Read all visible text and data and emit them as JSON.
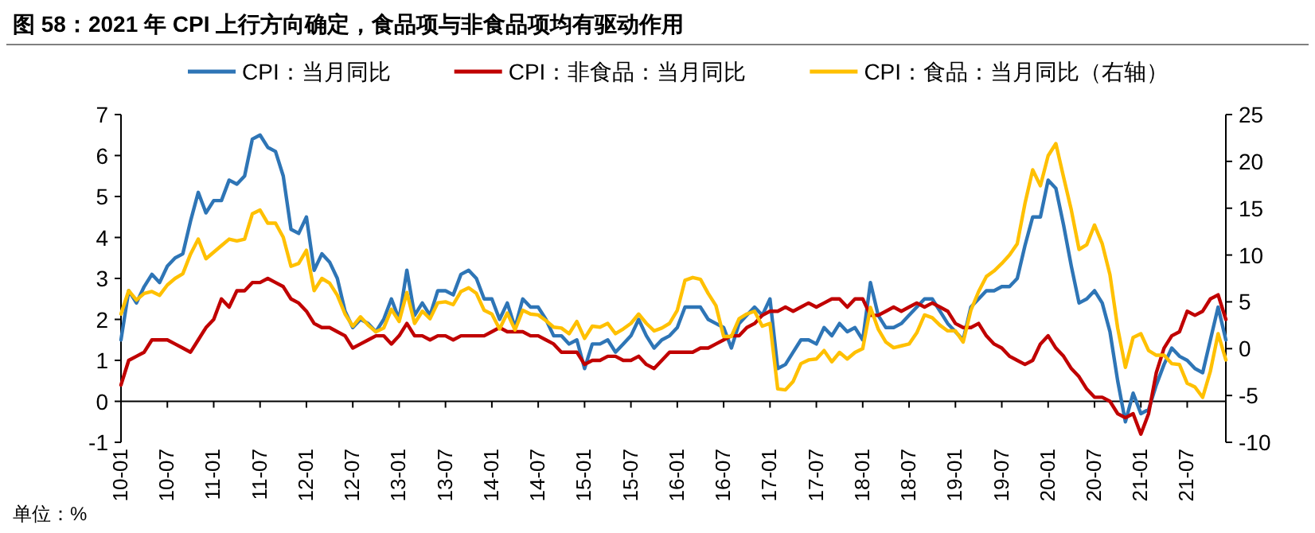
{
  "chart_data": {
    "type": "line",
    "title": "图 58：2021 年 CPI 上行方向确定，食品项与非食品项均有驱动作用",
    "legend": "top",
    "marker": "none",
    "line_style": "solid",
    "grid": false,
    "x": [
      "2010-01",
      "2010-02",
      "2010-03",
      "2010-04",
      "2010-05",
      "2010-06",
      "2010-07",
      "2010-08",
      "2010-09",
      "2010-10",
      "2010-11",
      "2010-12",
      "2011-01",
      "2011-02",
      "2011-03",
      "2011-04",
      "2011-05",
      "2011-06",
      "2011-07",
      "2011-08",
      "2011-09",
      "2011-10",
      "2011-11",
      "2011-12",
      "2012-01",
      "2012-02",
      "2012-03",
      "2012-04",
      "2012-05",
      "2012-06",
      "2012-07",
      "2012-08",
      "2012-09",
      "2012-10",
      "2012-11",
      "2012-12",
      "2013-01",
      "2013-02",
      "2013-03",
      "2013-04",
      "2013-05",
      "2013-06",
      "2013-07",
      "2013-08",
      "2013-09",
      "2013-10",
      "2013-11",
      "2013-12",
      "2014-01",
      "2014-02",
      "2014-03",
      "2014-04",
      "2014-05",
      "2014-06",
      "2014-07",
      "2014-08",
      "2014-09",
      "2014-10",
      "2014-11",
      "2014-12",
      "2015-01",
      "2015-02",
      "2015-03",
      "2015-04",
      "2015-05",
      "2015-06",
      "2015-07",
      "2015-08",
      "2015-09",
      "2015-10",
      "2015-11",
      "2015-12",
      "2016-01",
      "2016-02",
      "2016-03",
      "2016-04",
      "2016-05",
      "2016-06",
      "2016-07",
      "2016-08",
      "2016-09",
      "2016-10",
      "2016-11",
      "2016-12",
      "2017-01",
      "2017-02",
      "2017-03",
      "2017-04",
      "2017-05",
      "2017-06",
      "2017-07",
      "2017-08",
      "2017-09",
      "2017-10",
      "2017-11",
      "2017-12",
      "2018-01",
      "2018-02",
      "2018-03",
      "2018-04",
      "2018-05",
      "2018-06",
      "2018-07",
      "2018-08",
      "2018-09",
      "2018-10",
      "2018-11",
      "2018-12",
      "2019-01",
      "2019-02",
      "2019-03",
      "2019-04",
      "2019-05",
      "2019-06",
      "2019-07",
      "2019-08",
      "2019-09",
      "2019-10",
      "2019-11",
      "2019-12",
      "2020-01",
      "2020-02",
      "2020-03",
      "2020-04",
      "2020-05",
      "2020-06",
      "2020-07",
      "2020-08",
      "2020-09",
      "2020-10",
      "2020-11",
      "2020-12",
      "2021-01",
      "2021-02",
      "2021-03",
      "2021-04",
      "2021-05",
      "2021-06",
      "2021-07",
      "2021-08",
      "2021-09",
      "2021-10",
      "2021-11",
      "2021-12"
    ],
    "xlim": [
      "2010-01",
      "2021-12"
    ],
    "xticks": [
      {
        "value": "2010-01",
        "label": "10-01"
      },
      {
        "value": "2010-07",
        "label": "10-07"
      },
      {
        "value": "2011-01",
        "label": "11-01"
      },
      {
        "value": "2011-07",
        "label": "11-07"
      },
      {
        "value": "2012-01",
        "label": "12-01"
      },
      {
        "value": "2012-07",
        "label": "12-07"
      },
      {
        "value": "2013-01",
        "label": "13-01"
      },
      {
        "value": "2013-07",
        "label": "13-07"
      },
      {
        "value": "2014-01",
        "label": "14-01"
      },
      {
        "value": "2014-07",
        "label": "14-07"
      },
      {
        "value": "2015-01",
        "label": "15-01"
      },
      {
        "value": "2015-07",
        "label": "15-07"
      },
      {
        "value": "2016-01",
        "label": "16-01"
      },
      {
        "value": "2016-07",
        "label": "16-07"
      },
      {
        "value": "2017-01",
        "label": "17-01"
      },
      {
        "value": "2017-07",
        "label": "17-07"
      },
      {
        "value": "2018-01",
        "label": "18-01"
      },
      {
        "value": "2018-07",
        "label": "18-07"
      },
      {
        "value": "2019-01",
        "label": "19-01"
      },
      {
        "value": "2019-07",
        "label": "19-07"
      },
      {
        "value": "2020-01",
        "label": "20-01"
      },
      {
        "value": "2020-07",
        "label": "20-07"
      },
      {
        "value": "2021-01",
        "label": "21-01"
      },
      {
        "value": "2021-07",
        "label": "21-07"
      }
    ],
    "ylim": [
      -1,
      7
    ],
    "yticks": [
      -1,
      0,
      1,
      2,
      3,
      4,
      5,
      6,
      7
    ],
    "y2lim": [
      -10,
      25
    ],
    "y2ticks": [
      -10,
      -5,
      0,
      5,
      10,
      15,
      20,
      25
    ],
    "series": [
      {
        "name": "CPI：当月同比",
        "color": "#2e75b6",
        "values": [
          1.5,
          2.7,
          2.4,
          2.8,
          3.1,
          2.9,
          3.3,
          3.5,
          3.6,
          4.4,
          5.1,
          4.6,
          4.9,
          4.9,
          5.4,
          5.3,
          5.5,
          6.4,
          6.5,
          6.2,
          6.1,
          5.5,
          4.2,
          4.1,
          4.5,
          3.2,
          3.6,
          3.4,
          3.0,
          2.2,
          1.8,
          2.0,
          1.9,
          1.7,
          2.0,
          2.5,
          2.0,
          3.2,
          2.1,
          2.4,
          2.1,
          2.7,
          2.7,
          2.6,
          3.1,
          3.2,
          3.0,
          2.5,
          2.5,
          2.0,
          2.4,
          1.8,
          2.5,
          2.3,
          2.3,
          2.0,
          1.6,
          1.6,
          1.4,
          1.5,
          0.8,
          1.4,
          1.4,
          1.5,
          1.2,
          1.4,
          1.6,
          2.0,
          1.6,
          1.3,
          1.5,
          1.6,
          1.8,
          2.3,
          2.3,
          2.3,
          2.0,
          1.9,
          1.8,
          1.3,
          1.9,
          2.1,
          2.3,
          2.1,
          2.5,
          0.8,
          0.9,
          1.2,
          1.5,
          1.5,
          1.4,
          1.8,
          1.6,
          1.9,
          1.7,
          1.8,
          1.5,
          2.9,
          2.1,
          1.8,
          1.8,
          1.9,
          2.1,
          2.3,
          2.5,
          2.5,
          2.2,
          1.9,
          1.7,
          1.5,
          2.3,
          2.5,
          2.7,
          2.7,
          2.8,
          2.8,
          3.0,
          3.8,
          4.5,
          4.5,
          5.4,
          5.2,
          4.3,
          3.3,
          2.4,
          2.5,
          2.7,
          2.4,
          1.7,
          0.5,
          -0.5,
          0.2,
          -0.3,
          -0.2,
          0.4,
          0.9,
          1.3,
          1.1,
          1.0,
          0.8,
          0.7,
          1.5,
          2.3,
          1.5
        ]
      },
      {
        "name": "CPI：非食品：当月同比",
        "color": "#c00000",
        "values": [
          0.4,
          1.0,
          1.1,
          1.2,
          1.5,
          1.5,
          1.5,
          1.4,
          1.3,
          1.2,
          1.5,
          1.8,
          2.0,
          2.5,
          2.3,
          2.7,
          2.7,
          2.9,
          2.9,
          3.0,
          2.9,
          2.8,
          2.5,
          2.4,
          2.2,
          1.9,
          1.8,
          1.8,
          1.7,
          1.6,
          1.3,
          1.4,
          1.5,
          1.6,
          1.6,
          1.4,
          1.6,
          1.9,
          1.6,
          1.6,
          1.5,
          1.6,
          1.6,
          1.5,
          1.6,
          1.6,
          1.6,
          1.6,
          1.7,
          1.8,
          1.7,
          1.7,
          1.7,
          1.6,
          1.6,
          1.5,
          1.4,
          1.2,
          1.2,
          1.2,
          0.9,
          1.0,
          1.0,
          1.1,
          1.1,
          1.0,
          1.0,
          1.1,
          0.9,
          0.8,
          1.0,
          1.2,
          1.2,
          1.2,
          1.2,
          1.3,
          1.3,
          1.4,
          1.5,
          1.6,
          1.6,
          1.8,
          1.9,
          2.1,
          2.2,
          2.2,
          2.3,
          2.2,
          2.3,
          2.4,
          2.3,
          2.4,
          2.5,
          2.5,
          2.3,
          2.5,
          2.5,
          2.1,
          2.1,
          2.2,
          2.3,
          2.2,
          2.3,
          2.4,
          2.3,
          2.4,
          2.3,
          2.2,
          1.9,
          1.8,
          1.8,
          1.9,
          1.6,
          1.4,
          1.3,
          1.1,
          1.0,
          0.9,
          1.0,
          1.4,
          1.6,
          1.3,
          1.1,
          0.8,
          0.6,
          0.3,
          0.1,
          0.1,
          0.0,
          -0.3,
          -0.4,
          -0.3,
          -0.8,
          -0.3,
          0.7,
          1.3,
          1.6,
          1.7,
          2.2,
          2.1,
          2.2,
          2.5,
          2.6,
          2.0
        ]
      },
      {
        "name": "CPI：食品：当月同比（右轴）",
        "color": "#ffc000",
        "axis": "y2",
        "values": [
          3.7,
          6.2,
          5.2,
          5.9,
          6.1,
          5.7,
          6.8,
          7.5,
          8.0,
          10.1,
          11.7,
          9.6,
          10.3,
          11.0,
          11.7,
          11.5,
          11.7,
          14.4,
          14.8,
          13.4,
          13.4,
          11.9,
          8.8,
          9.1,
          10.5,
          6.2,
          7.5,
          7.0,
          5.7,
          3.7,
          2.4,
          3.4,
          2.5,
          1.8,
          2.2,
          4.2,
          2.9,
          6.0,
          2.7,
          4.0,
          3.2,
          4.9,
          5.0,
          4.7,
          6.1,
          6.5,
          5.9,
          4.1,
          3.7,
          2.1,
          3.8,
          2.0,
          4.1,
          3.7,
          3.6,
          3.0,
          2.3,
          2.2,
          1.6,
          2.9,
          1.1,
          2.4,
          2.3,
          2.7,
          1.6,
          2.1,
          2.7,
          3.7,
          2.7,
          1.9,
          2.2,
          2.7,
          4.1,
          7.3,
          7.6,
          7.4,
          5.9,
          4.6,
          1.3,
          1.3,
          3.2,
          3.7,
          4.0,
          2.4,
          2.7,
          -4.3,
          -4.4,
          -3.5,
          -1.6,
          -1.2,
          -1.1,
          -0.2,
          -1.4,
          -0.4,
          -1.1,
          -0.4,
          0.0,
          4.4,
          2.1,
          0.7,
          0.1,
          0.3,
          0.5,
          1.7,
          3.6,
          3.3,
          2.5,
          1.9,
          1.9,
          0.7,
          4.1,
          6.1,
          7.7,
          8.3,
          9.1,
          10.0,
          11.2,
          15.5,
          19.1,
          17.4,
          20.6,
          21.9,
          18.3,
          14.8,
          10.6,
          11.1,
          13.2,
          11.2,
          7.9,
          2.2,
          -2.0,
          1.2,
          1.6,
          -0.2,
          -0.7,
          -0.7,
          -1.6,
          -1.7,
          -3.7,
          -4.1,
          -5.2,
          -2.4,
          1.6,
          -1.2
        ]
      }
    ],
    "annotations": [
      "单位：%"
    ]
  }
}
